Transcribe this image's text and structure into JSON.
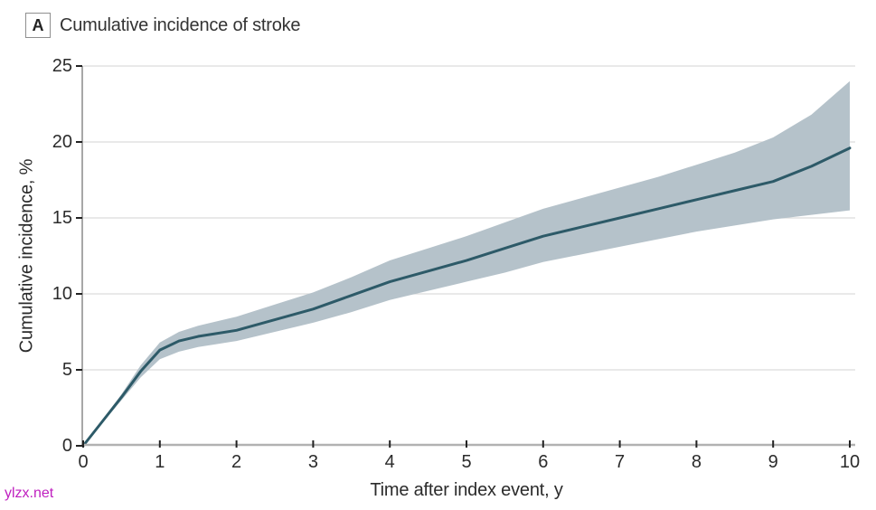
{
  "header": {
    "panel_label": "A",
    "title": "Cumulative incidence of stroke"
  },
  "watermark": "ylzx.net",
  "chart_data": {
    "type": "line",
    "title": "Cumulative incidence of stroke",
    "xlabel": "Time after index event, y",
    "ylabel": "Cumulative incidence, %",
    "xlim": [
      0,
      10
    ],
    "ylim": [
      0,
      25
    ],
    "x_ticks": [
      0,
      1,
      2,
      3,
      4,
      5,
      6,
      7,
      8,
      9,
      10
    ],
    "y_ticks": [
      0,
      5,
      10,
      15,
      20,
      25
    ],
    "grid": "horizontal",
    "legend_position": "none",
    "colors": {
      "line": "#2d5a68",
      "band": "#b5c2ca",
      "grid": "#dcdcdc",
      "x_axis": "#b2b2b2",
      "y_axis": "#8c8c8c",
      "tick": "#222222"
    },
    "x": [
      0,
      0.25,
      0.5,
      0.75,
      1,
      1.25,
      1.5,
      2,
      2.5,
      3,
      3.5,
      4,
      4.5,
      5,
      5.5,
      6,
      6.5,
      7,
      7.5,
      8,
      8.5,
      9,
      9.5,
      10
    ],
    "series": [
      {
        "name": "Cumulative incidence of stroke",
        "role": "center",
        "values": [
          0,
          1.6,
          3.2,
          4.9,
          6.3,
          6.9,
          7.2,
          7.6,
          8.3,
          9.0,
          9.9,
          10.8,
          11.5,
          12.2,
          13.0,
          13.8,
          14.4,
          15.0,
          15.6,
          16.2,
          16.8,
          17.4,
          18.4,
          19.6
        ]
      },
      {
        "name": "95% CI lower",
        "role": "band_lower",
        "values": [
          0,
          1.5,
          3.0,
          4.5,
          5.7,
          6.2,
          6.5,
          6.9,
          7.5,
          8.1,
          8.8,
          9.6,
          10.2,
          10.8,
          11.4,
          12.1,
          12.6,
          13.1,
          13.6,
          14.1,
          14.5,
          14.9,
          15.2,
          15.5
        ]
      },
      {
        "name": "95% CI upper",
        "role": "band_upper",
        "values": [
          0,
          1.7,
          3.4,
          5.3,
          6.8,
          7.5,
          7.9,
          8.5,
          9.3,
          10.1,
          11.1,
          12.2,
          13.0,
          13.8,
          14.7,
          15.6,
          16.3,
          17.0,
          17.7,
          18.5,
          19.3,
          20.3,
          21.8,
          24.0
        ]
      }
    ]
  }
}
